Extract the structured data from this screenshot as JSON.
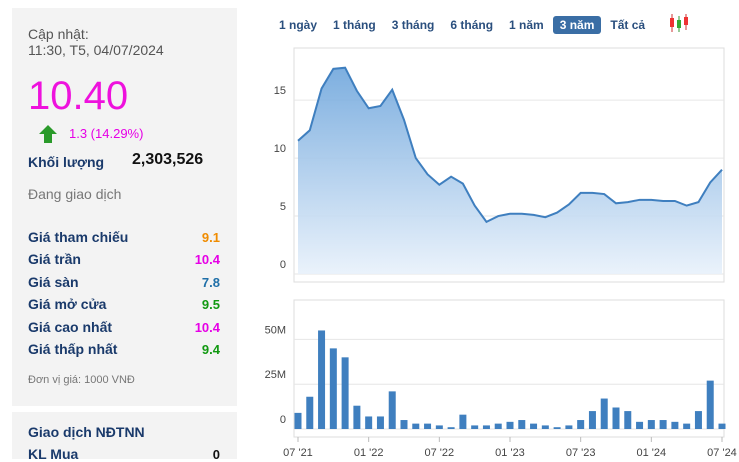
{
  "panel": {
    "updated_label": "Cập nhật:",
    "updated_time": "11:30, T5, 04/07/2024",
    "price": "10.40",
    "change": "1.3 (14.29%)",
    "volume_label": "Khối lượng",
    "volume": "2,303,526",
    "status": "Đang giao dịch",
    "rows": [
      {
        "label": "Giá tham chiếu",
        "value": 9.1,
        "color": "#f08c00"
      },
      {
        "label": "Giá trần",
        "value": 10.4,
        "color": "#e600e6"
      },
      {
        "label": "Giá sàn",
        "value": 7.8,
        "color": "#1f6fa8"
      },
      {
        "label": "Giá mở cửa",
        "value": 9.5,
        "color": "#119911"
      },
      {
        "label": "Giá cao nhất",
        "value": 10.4,
        "color": "#e600e6"
      },
      {
        "label": "Giá thấp nhất",
        "value": 9.4,
        "color": "#119911"
      }
    ],
    "unit_note": "Đơn vị giá: 1000 VNĐ",
    "foreign_title": "Giao dịch NĐTNN",
    "foreign_rows": [
      {
        "label": "KL Mua",
        "value": 0
      }
    ]
  },
  "range_buttons": [
    "1 ngày",
    "1 tháng",
    "3 tháng",
    "6 tháng",
    "1 năm",
    "3 năm",
    "Tất cả"
  ],
  "chart_data": [
    {
      "type": "area",
      "color": "#3f7fbf",
      "ylim": [
        0,
        19.5
      ],
      "yticks": [
        0,
        5,
        10,
        15
      ],
      "grid": true,
      "categories": [
        "07 '21",
        null,
        null,
        null,
        null,
        null,
        "01 '22",
        null,
        null,
        null,
        null,
        null,
        "07 '22",
        null,
        null,
        null,
        null,
        null,
        "01 '23",
        null,
        null,
        null,
        null,
        null,
        "07 '23",
        null,
        null,
        null,
        null,
        null,
        "01 '24",
        null,
        null,
        null,
        null,
        null,
        "07 '24"
      ],
      "values": [
        11.5,
        12.4,
        16,
        17.7,
        17.8,
        15.8,
        14.3,
        14.5,
        15.9,
        13.3,
        10,
        8.6,
        7.7,
        8.4,
        7.8,
        5.9,
        4.5,
        5,
        5.2,
        5.2,
        5.1,
        4.9,
        5.3,
        6,
        7,
        7,
        6.9,
        6.1,
        6.2,
        6.4,
        6.4,
        6.3,
        6.3,
        5.9,
        6.2,
        7.9,
        9
      ]
    },
    {
      "type": "bar",
      "color": "#3f7fbf",
      "ylim": [
        0,
        72
      ],
      "yticks": [
        0,
        {
          "value": 25,
          "label": "25M"
        },
        {
          "value": 50,
          "label": "50M"
        }
      ],
      "grid": true,
      "values": [
        9,
        18,
        55,
        45,
        40,
        13,
        7,
        7,
        21,
        5,
        3,
        3,
        2,
        1,
        8,
        2,
        2,
        3,
        4,
        5,
        3,
        2,
        1,
        2,
        5,
        10,
        17,
        12,
        10,
        4,
        5,
        5,
        4,
        3,
        10,
        27,
        3
      ]
    }
  ]
}
